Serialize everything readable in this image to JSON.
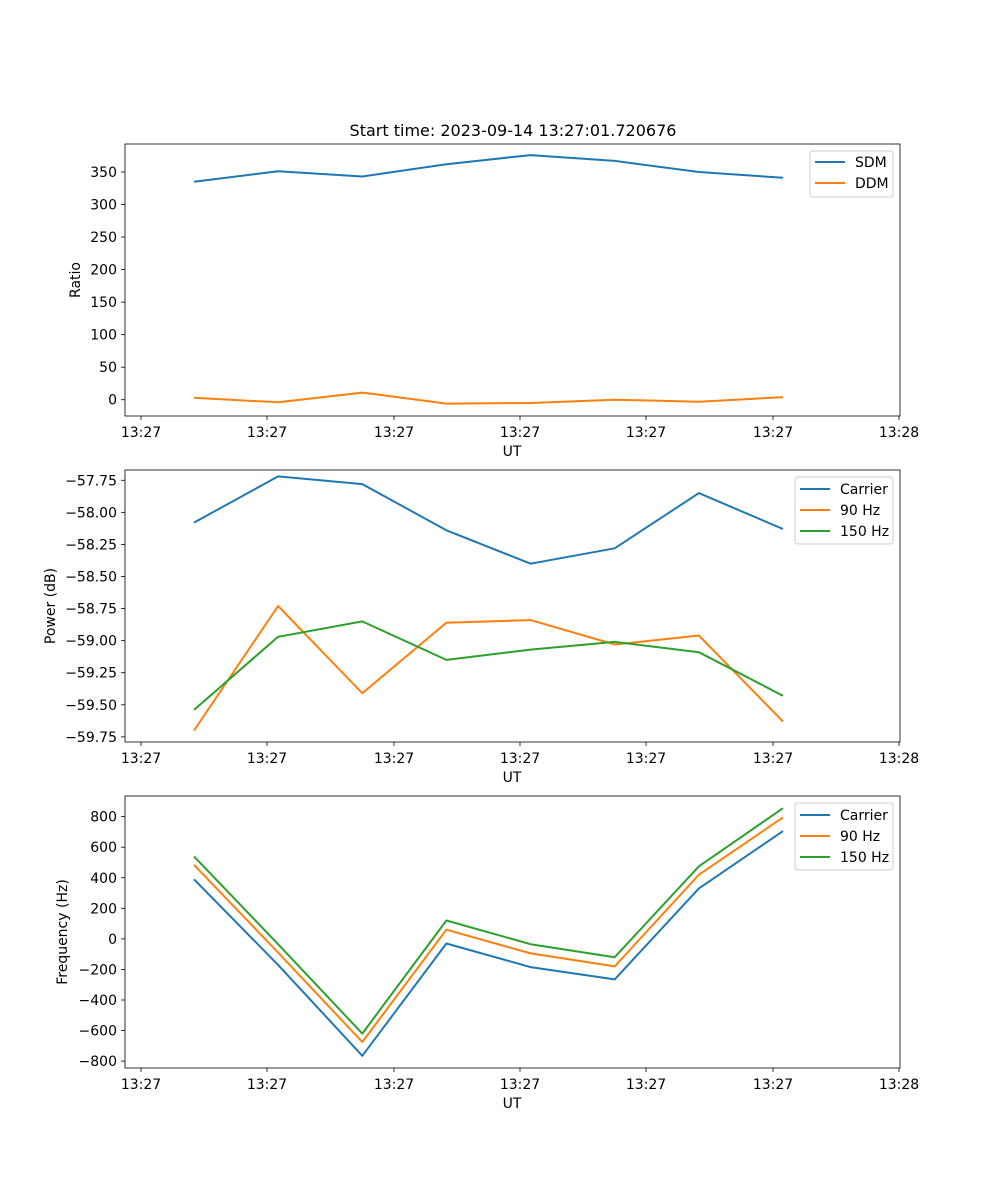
{
  "figure": {
    "title": "Start time: 2023-09-14 13:27:01.720676"
  },
  "colors": {
    "blue": "#1f77b4",
    "orange": "#ff7f0e",
    "green": "#2ca02c",
    "axis": "#000000",
    "legend_border": "#cccccc"
  },
  "chart_data": [
    {
      "type": "line",
      "title": "Start time: 2023-09-14 13:27:01.720676",
      "xlabel": "UT",
      "ylabel": "Ratio",
      "x_tick_labels": [
        "13:27",
        "13:27",
        "13:27",
        "13:27",
        "13:27",
        "13:27",
        "13:28"
      ],
      "x": [
        1,
        2,
        3,
        4,
        5,
        6,
        7,
        8
      ],
      "xlim": [
        0.18,
        9.39
      ],
      "ylim": [
        -25,
        393
      ],
      "y_ticks": [
        0,
        50,
        100,
        150,
        200,
        250,
        300,
        350
      ],
      "y_tick_labels": [
        "0",
        "50",
        "100",
        "150",
        "200",
        "250",
        "300",
        "350"
      ],
      "legend_position": "top-right",
      "series": [
        {
          "name": "SDM",
          "color": "#1f77b4",
          "values": [
            335,
            351,
            343,
            362,
            376,
            367,
            350,
            341
          ]
        },
        {
          "name": "DDM",
          "color": "#ff7f0e",
          "values": [
            3,
            -4,
            11,
            -6,
            -5,
            0,
            -3,
            4
          ]
        }
      ]
    },
    {
      "type": "line",
      "title": "",
      "xlabel": "UT",
      "ylabel": "Power (dB)",
      "x_tick_labels": [
        "13:27",
        "13:27",
        "13:27",
        "13:27",
        "13:27",
        "13:27",
        "13:28"
      ],
      "x": [
        1,
        2,
        3,
        4,
        5,
        6,
        7,
        8
      ],
      "xlim": [
        0.18,
        9.39
      ],
      "ylim": [
        -59.79,
        -57.67
      ],
      "y_ticks": [
        -59.75,
        -59.5,
        -59.25,
        -59.0,
        -58.75,
        -58.5,
        -58.25,
        -58.0,
        -57.75
      ],
      "y_tick_labels": [
        "−59.75",
        "−59.50",
        "−59.25",
        "−59.00",
        "−58.75",
        "−58.50",
        "−58.25",
        "−58.00",
        "−57.75"
      ],
      "legend_position": "top-right",
      "series": [
        {
          "name": "Carrier",
          "color": "#1f77b4",
          "values": [
            -58.08,
            -57.72,
            -57.78,
            -58.14,
            -58.4,
            -58.28,
            -57.85,
            -58.13
          ]
        },
        {
          "name": "90 Hz",
          "color": "#ff7f0e",
          "values": [
            -59.7,
            -58.73,
            -59.41,
            -58.86,
            -58.84,
            -59.03,
            -58.96,
            -59.63
          ]
        },
        {
          "name": "150 Hz",
          "color": "#2ca02c",
          "values": [
            -59.54,
            -58.97,
            -58.85,
            -59.15,
            -59.07,
            -59.01,
            -59.09,
            -59.43
          ]
        }
      ]
    },
    {
      "type": "line",
      "title": "",
      "xlabel": "UT",
      "ylabel": "Frequency (Hz)",
      "x_tick_labels": [
        "13:27",
        "13:27",
        "13:27",
        "13:27",
        "13:27",
        "13:27",
        "13:28"
      ],
      "x": [
        1,
        2,
        3,
        4,
        5,
        6,
        7,
        8
      ],
      "xlim": [
        0.18,
        9.39
      ],
      "ylim": [
        -845,
        935
      ],
      "y_ticks": [
        -800,
        -600,
        -400,
        -200,
        0,
        200,
        400,
        600,
        800
      ],
      "y_tick_labels": [
        "−800",
        "−600",
        "−400",
        "−200",
        "0",
        "200",
        "400",
        "600",
        "800"
      ],
      "legend_position": "top-right",
      "series": [
        {
          "name": "Carrier",
          "color": "#1f77b4",
          "values": [
            390,
            -170,
            -765,
            -30,
            -185,
            -265,
            330,
            705
          ]
        },
        {
          "name": "90 Hz",
          "color": "#ff7f0e",
          "values": [
            485,
            -90,
            -675,
            60,
            -95,
            -180,
            420,
            795
          ]
        },
        {
          "name": "150 Hz",
          "color": "#2ca02c",
          "values": [
            540,
            -35,
            -620,
            120,
            -35,
            -120,
            475,
            855
          ]
        }
      ]
    }
  ]
}
